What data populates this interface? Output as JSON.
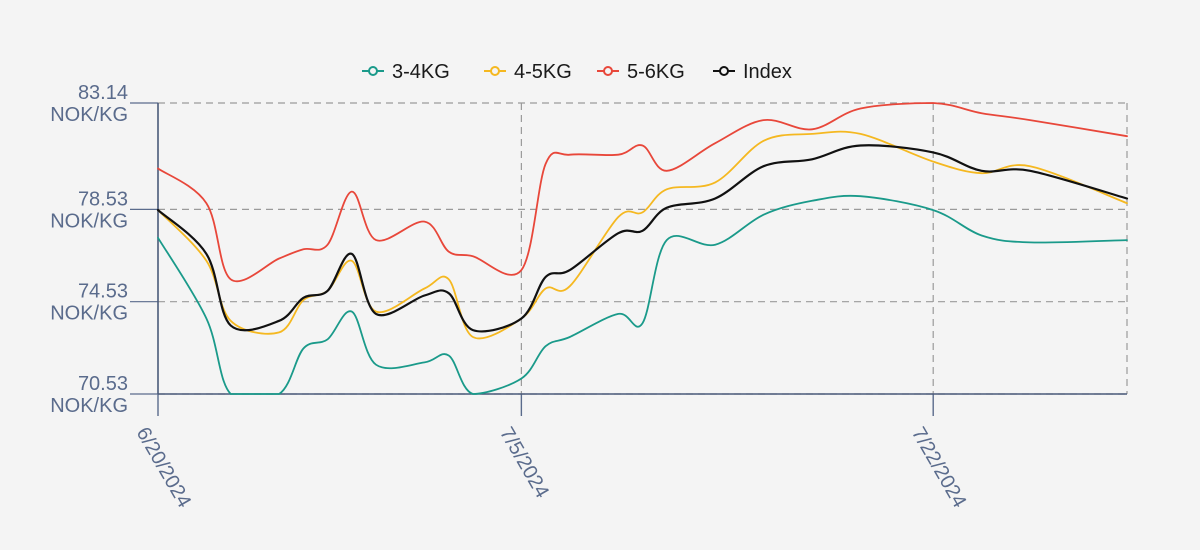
{
  "chart_data": {
    "type": "line",
    "title": "",
    "xlabel": "",
    "ylabel": "",
    "ylim": [
      70.53,
      83.14
    ],
    "xlim": [
      "2024-06-20",
      "2024-07-30"
    ],
    "grid": true,
    "legend_position": "top-center",
    "y_ticks": [
      {
        "value": 70.53,
        "line1": "70.53",
        "line2": "NOK/KG"
      },
      {
        "value": 74.53,
        "line1": "74.53",
        "line2": "NOK/KG"
      },
      {
        "value": 78.53,
        "line1": "78.53",
        "line2": "NOK/KG"
      },
      {
        "value": 83.14,
        "line1": "83.14",
        "line2": "NOK/KG"
      }
    ],
    "x_ticks": [
      {
        "date": "2024-06-20",
        "label": "6/20/2024"
      },
      {
        "date": "2024-07-05",
        "label": "7/5/2024"
      },
      {
        "date": "2024-07-22",
        "label": "7/22/2024"
      }
    ],
    "series": [
      {
        "name": "3-4KG",
        "color": "#1a9a8a",
        "points": [
          [
            "2024-06-20",
            77.3
          ],
          [
            "2024-06-22",
            73.8
          ],
          [
            "2024-06-23",
            70.53
          ],
          [
            "2024-06-25",
            70.53
          ],
          [
            "2024-06-26",
            72.5
          ],
          [
            "2024-06-27",
            72.9
          ],
          [
            "2024-06-28",
            74.1
          ],
          [
            "2024-06-29",
            71.8
          ],
          [
            "2024-07-01",
            71.9
          ],
          [
            "2024-07-02",
            72.2
          ],
          [
            "2024-07-03",
            70.53
          ],
          [
            "2024-07-05",
            71.2
          ],
          [
            "2024-07-06",
            72.6
          ],
          [
            "2024-07-07",
            73.0
          ],
          [
            "2024-07-09",
            74.0
          ],
          [
            "2024-07-10",
            73.6
          ],
          [
            "2024-07-11",
            77.2
          ],
          [
            "2024-07-13",
            77.0
          ],
          [
            "2024-07-15",
            78.3
          ],
          [
            "2024-07-17",
            78.9
          ],
          [
            "2024-07-19",
            79.1
          ],
          [
            "2024-07-22",
            78.5
          ],
          [
            "2024-07-24",
            77.4
          ],
          [
            "2024-07-26",
            77.1
          ],
          [
            "2024-07-30",
            77.2
          ]
        ]
      },
      {
        "name": "4-5KG",
        "color": "#f5b820",
        "points": [
          [
            "2024-06-20",
            78.5
          ],
          [
            "2024-06-22",
            76.3
          ],
          [
            "2024-06-23",
            73.7
          ],
          [
            "2024-06-25",
            73.2
          ],
          [
            "2024-06-26",
            74.6
          ],
          [
            "2024-06-27",
            75.0
          ],
          [
            "2024-06-28",
            76.3
          ],
          [
            "2024-06-29",
            74.1
          ],
          [
            "2024-07-01",
            75.1
          ],
          [
            "2024-07-02",
            75.5
          ],
          [
            "2024-07-03",
            73.0
          ],
          [
            "2024-07-05",
            73.8
          ],
          [
            "2024-07-06",
            75.1
          ],
          [
            "2024-07-07",
            75.2
          ],
          [
            "2024-07-09",
            78.2
          ],
          [
            "2024-07-10",
            78.4
          ],
          [
            "2024-07-11",
            79.4
          ],
          [
            "2024-07-13",
            79.7
          ],
          [
            "2024-07-15",
            81.5
          ],
          [
            "2024-07-17",
            81.8
          ],
          [
            "2024-07-19",
            81.8
          ],
          [
            "2024-07-22",
            80.6
          ],
          [
            "2024-07-24",
            80.1
          ],
          [
            "2024-07-26",
            80.4
          ],
          [
            "2024-07-30",
            78.8
          ]
        ]
      },
      {
        "name": "5-6KG",
        "color": "#e8473a",
        "points": [
          [
            "2024-06-20",
            80.3
          ],
          [
            "2024-06-22",
            78.8
          ],
          [
            "2024-06-23",
            75.5
          ],
          [
            "2024-06-25",
            76.4
          ],
          [
            "2024-06-26",
            76.8
          ],
          [
            "2024-06-27",
            77.0
          ],
          [
            "2024-06-28",
            79.3
          ],
          [
            "2024-06-29",
            77.2
          ],
          [
            "2024-07-01",
            78.0
          ],
          [
            "2024-07-02",
            76.7
          ],
          [
            "2024-07-03",
            76.5
          ],
          [
            "2024-07-05",
            75.9
          ],
          [
            "2024-07-06",
            80.5
          ],
          [
            "2024-07-07",
            80.9
          ],
          [
            "2024-07-09",
            80.9
          ],
          [
            "2024-07-10",
            81.3
          ],
          [
            "2024-07-11",
            80.2
          ],
          [
            "2024-07-13",
            81.4
          ],
          [
            "2024-07-15",
            82.4
          ],
          [
            "2024-07-17",
            82.0
          ],
          [
            "2024-07-19",
            82.9
          ],
          [
            "2024-07-22",
            83.14
          ],
          [
            "2024-07-24",
            82.7
          ],
          [
            "2024-07-26",
            82.4
          ],
          [
            "2024-07-30",
            81.7
          ]
        ]
      },
      {
        "name": "Index",
        "color": "#111111",
        "points": [
          [
            "2024-06-20",
            78.5
          ],
          [
            "2024-06-22",
            76.6
          ],
          [
            "2024-06-23",
            73.5
          ],
          [
            "2024-06-25",
            73.7
          ],
          [
            "2024-06-26",
            74.7
          ],
          [
            "2024-06-27",
            75.0
          ],
          [
            "2024-06-28",
            76.6
          ],
          [
            "2024-06-29",
            74.0
          ],
          [
            "2024-07-01",
            74.8
          ],
          [
            "2024-07-02",
            74.9
          ],
          [
            "2024-07-03",
            73.3
          ],
          [
            "2024-07-05",
            73.8
          ],
          [
            "2024-07-06",
            75.6
          ],
          [
            "2024-07-07",
            75.9
          ],
          [
            "2024-07-09",
            77.5
          ],
          [
            "2024-07-10",
            77.6
          ],
          [
            "2024-07-11",
            78.6
          ],
          [
            "2024-07-13",
            79.0
          ],
          [
            "2024-07-15",
            80.4
          ],
          [
            "2024-07-17",
            80.7
          ],
          [
            "2024-07-19",
            81.3
          ],
          [
            "2024-07-22",
            81.0
          ],
          [
            "2024-07-24",
            80.2
          ],
          [
            "2024-07-26",
            80.2
          ],
          [
            "2024-07-30",
            79.0
          ]
        ]
      }
    ]
  }
}
